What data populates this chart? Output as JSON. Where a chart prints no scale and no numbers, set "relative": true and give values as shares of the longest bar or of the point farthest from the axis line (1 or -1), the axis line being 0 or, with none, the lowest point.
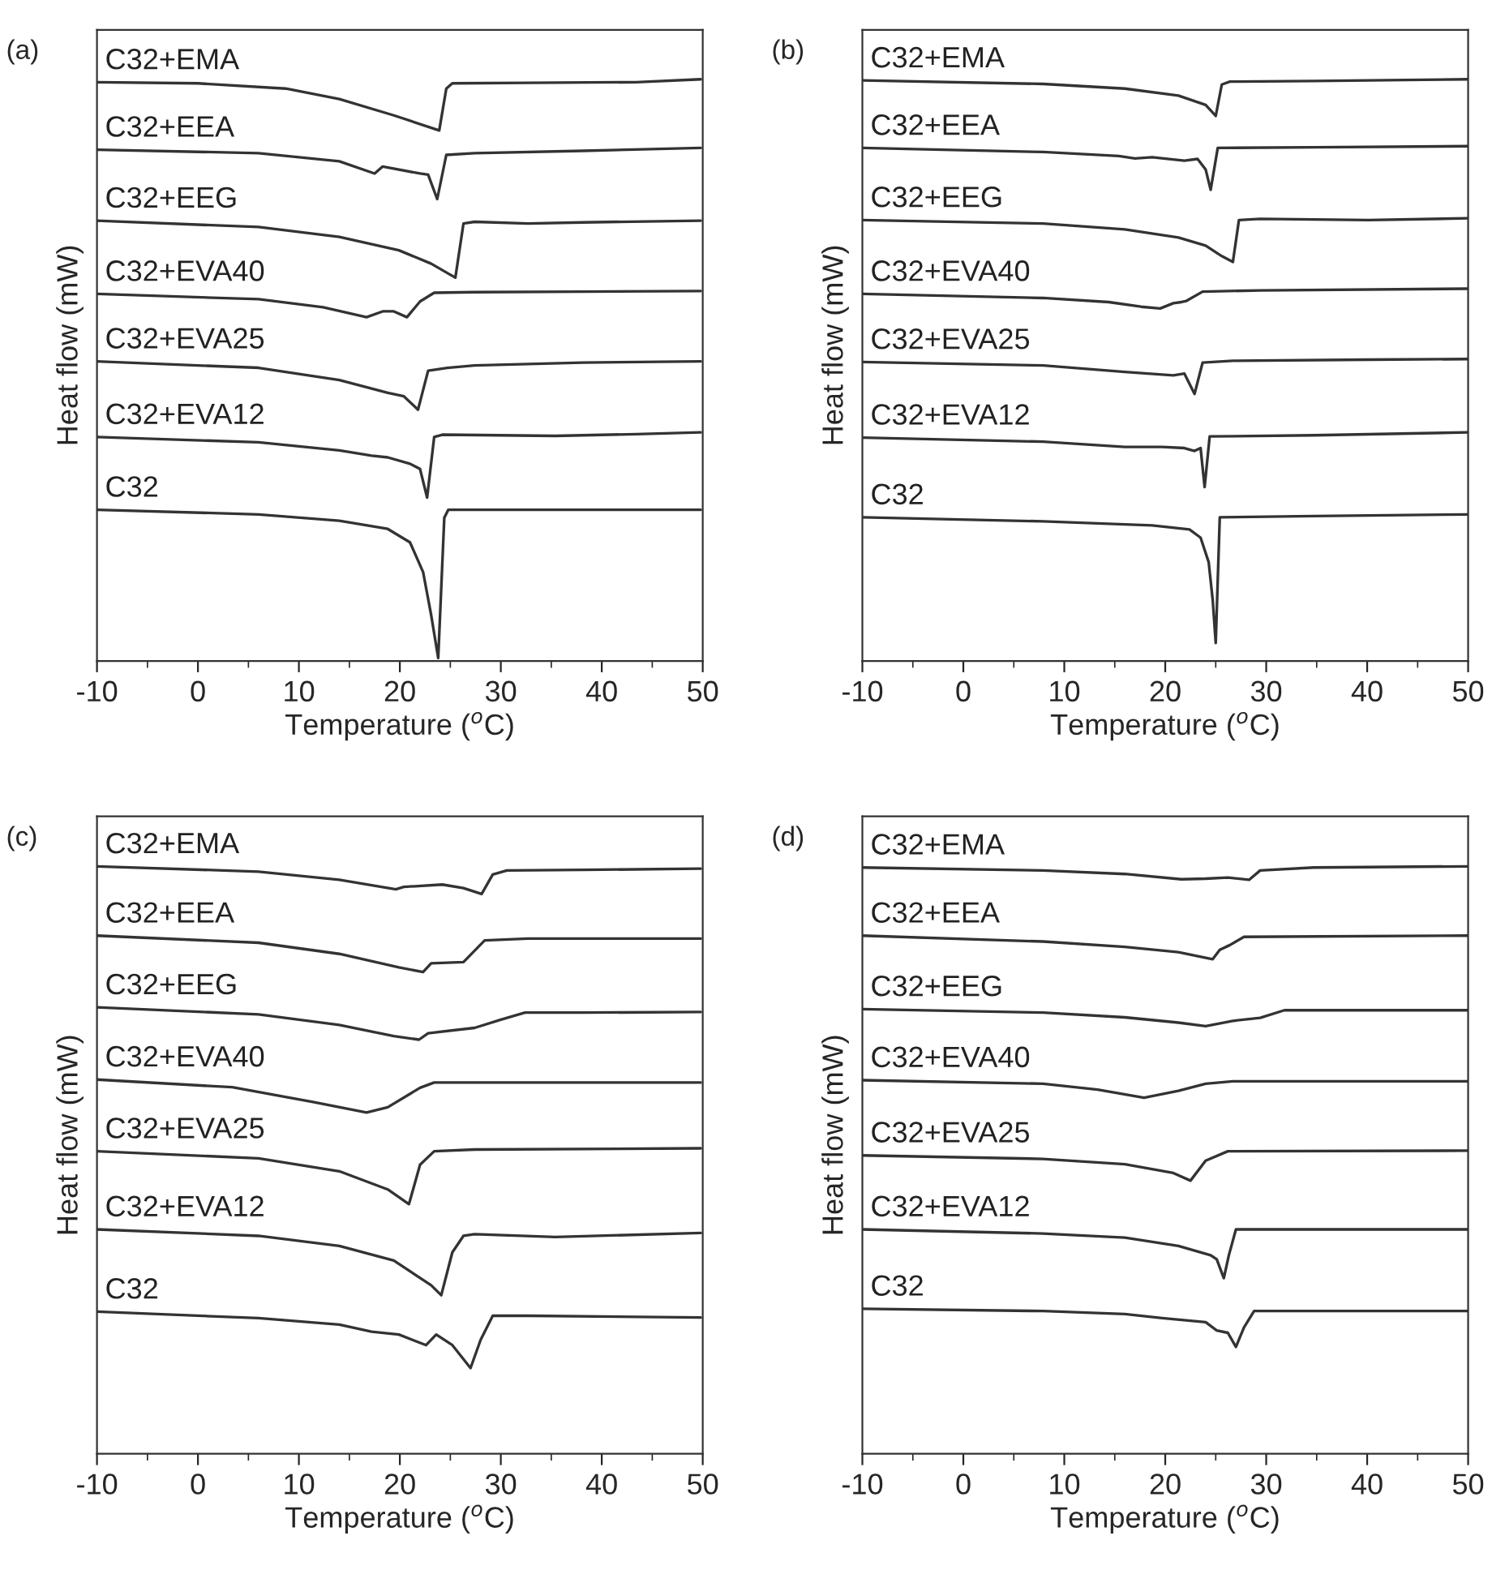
{
  "chart_data": [
    {
      "type": "line",
      "title": "(a)",
      "xlabel": "Temperature ($^{o}$C)",
      "ylabel": "Heat flow (mW)",
      "relative": true,
      "xlim": [
        -10,
        50
      ],
      "xticks": [
        -10,
        0,
        10,
        20,
        30,
        40,
        50
      ],
      "tick_labels": "x",
      "legend": false,
      "grid": false,
      "series": [
        {
          "name": "C32+EMA",
          "color": "#333333",
          "x": [
            -10,
            0,
            8.7,
            14,
            19.4,
            23.9,
            24.6,
            25.2,
            32.7,
            43.4,
            49.8
          ],
          "values": [
            0.995,
            0.993,
            0.984,
            0.966,
            0.938,
            0.912,
            0.984,
            0.993,
            0.994,
            0.995,
            1.0
          ]
        },
        {
          "name": "C32+EEA",
          "color": "#333333",
          "x": [
            -10,
            6.0,
            14.0,
            17.5,
            18.3,
            22.0,
            22.8,
            23.7,
            24.6,
            27.4,
            38.1,
            49.8
          ],
          "values": [
            0.879,
            0.873,
            0.859,
            0.838,
            0.85,
            0.838,
            0.836,
            0.794,
            0.87,
            0.873,
            0.877,
            0.882
          ]
        },
        {
          "name": "C32+EEG",
          "color": "#333333",
          "x": [
            -10,
            6.0,
            14.0,
            19.9,
            23.1,
            25.5,
            26.3,
            27.4,
            32.7,
            38.1,
            49.8
          ],
          "values": [
            0.757,
            0.746,
            0.729,
            0.706,
            0.683,
            0.659,
            0.752,
            0.755,
            0.752,
            0.754,
            0.757
          ]
        },
        {
          "name": "C32+EVA40",
          "color": "#333333",
          "x": [
            -10,
            6.0,
            12.4,
            16.7,
            18.3,
            19.4,
            20.7,
            22.0,
            23.4,
            27.4,
            38.1,
            49.8
          ],
          "values": [
            0.631,
            0.622,
            0.608,
            0.591,
            0.601,
            0.601,
            0.591,
            0.618,
            0.633,
            0.634,
            0.635,
            0.636
          ]
        },
        {
          "name": "C32+EVA25",
          "color": "#333333",
          "x": [
            -10,
            6.0,
            14.0,
            18.8,
            20.4,
            21.8,
            22.8,
            24.7,
            27.4,
            38.1,
            49.8
          ],
          "values": [
            0.515,
            0.504,
            0.483,
            0.461,
            0.455,
            0.432,
            0.499,
            0.504,
            0.508,
            0.513,
            0.515
          ]
        },
        {
          "name": "C32+EVA12",
          "color": "#333333",
          "x": [
            -10,
            6.0,
            14.0,
            17.2,
            18.8,
            21.0,
            22.0,
            22.7,
            23.4,
            24.2,
            35.4,
            43.4,
            49.8
          ],
          "values": [
            0.385,
            0.376,
            0.362,
            0.353,
            0.35,
            0.339,
            0.33,
            0.281,
            0.385,
            0.389,
            0.387,
            0.39,
            0.393
          ]
        },
        {
          "name": "C32",
          "color": "#333333",
          "x": [
            -10,
            6.0,
            14.0,
            18.8,
            21.0,
            22.3,
            23.1,
            23.8,
            24.4,
            24.8,
            32.7,
            49.8
          ],
          "values": [
            0.26,
            0.252,
            0.241,
            0.227,
            0.204,
            0.153,
            0.079,
            0.005,
            0.246,
            0.26,
            0.26,
            0.26
          ]
        }
      ]
    },
    {
      "type": "line",
      "title": "(b)",
      "xlabel": "Temperature ($^{o}$C)",
      "ylabel": "Heat flow (mW)",
      "relative": true,
      "xlim": [
        -10,
        50
      ],
      "xticks": [
        -10,
        0,
        10,
        20,
        30,
        40,
        50
      ],
      "tick_labels": "x",
      "legend": false,
      "grid": false,
      "series": [
        {
          "name": "C32+EMA",
          "color": "#333333",
          "x": [
            -10,
            7.9,
            16.0,
            21.3,
            24.0,
            25.0,
            25.6,
            26.4,
            34.7,
            50
          ],
          "values": [
            0.998,
            0.992,
            0.984,
            0.972,
            0.956,
            0.937,
            0.991,
            0.996,
            0.997,
            1.0
          ]
        },
        {
          "name": "C32+EEA",
          "color": "#333333",
          "x": [
            -10,
            7.9,
            15.4,
            17.0,
            18.7,
            21.9,
            23.2,
            24.0,
            24.5,
            25.2,
            34.7,
            50
          ],
          "values": [
            0.882,
            0.875,
            0.868,
            0.864,
            0.866,
            0.86,
            0.863,
            0.845,
            0.81,
            0.882,
            0.883,
            0.885
          ]
        },
        {
          "name": "C32+EEG",
          "color": "#333333",
          "x": [
            -10,
            7.9,
            16.0,
            21.3,
            24.0,
            25.6,
            26.7,
            27.3,
            29.4,
            40.1,
            50
          ],
          "values": [
            0.758,
            0.752,
            0.742,
            0.728,
            0.714,
            0.696,
            0.686,
            0.758,
            0.76,
            0.758,
            0.761
          ]
        },
        {
          "name": "C32+EVA40",
          "color": "#333333",
          "x": [
            -10,
            7.9,
            14.4,
            17.6,
            19.5,
            20.8,
            21.6,
            22.1,
            23.7,
            29.4,
            50
          ],
          "values": [
            0.631,
            0.624,
            0.617,
            0.609,
            0.606,
            0.615,
            0.617,
            0.619,
            0.635,
            0.637,
            0.64
          ]
        },
        {
          "name": "C32+EVA25",
          "color": "#333333",
          "x": [
            -10,
            7.9,
            16.0,
            20.8,
            21.9,
            22.9,
            23.7,
            26.7,
            40.1,
            50
          ],
          "values": [
            0.514,
            0.508,
            0.497,
            0.491,
            0.494,
            0.459,
            0.513,
            0.516,
            0.518,
            0.519
          ]
        },
        {
          "name": "C32+EVA12",
          "color": "#333333",
          "x": [
            -10,
            7.9,
            16.0,
            19.7,
            21.9,
            22.9,
            23.5,
            23.9,
            24.4,
            34.7,
            50
          ],
          "values": [
            0.384,
            0.377,
            0.368,
            0.368,
            0.366,
            0.361,
            0.366,
            0.299,
            0.386,
            0.388,
            0.393
          ]
        },
        {
          "name": "C32",
          "color": "#333333",
          "x": [
            -10,
            7.9,
            18.7,
            22.4,
            23.5,
            24.3,
            24.7,
            25.0,
            25.4,
            34.7,
            50
          ],
          "values": [
            0.247,
            0.24,
            0.233,
            0.226,
            0.212,
            0.17,
            0.105,
            0.031,
            0.247,
            0.249,
            0.252
          ]
        }
      ]
    },
    {
      "type": "line",
      "title": "(c)",
      "xlabel": "Temperature ($^{o}$C)",
      "ylabel": "Heat flow (mW)",
      "relative": true,
      "xlim": [
        -10,
        50
      ],
      "xticks": [
        -10,
        0,
        10,
        20,
        30,
        40,
        50
      ],
      "tick_labels": "x",
      "legend": false,
      "grid": false,
      "series": [
        {
          "name": "C32+EMA",
          "color": "#333333",
          "x": [
            -10,
            6.0,
            14.0,
            19.6,
            20.4,
            24.2,
            26.3,
            28.1,
            29.2,
            30.6,
            38.1,
            49.8
          ],
          "values": [
            1.0,
            0.991,
            0.977,
            0.961,
            0.965,
            0.969,
            0.963,
            0.953,
            0.986,
            0.993,
            0.994,
            0.996
          ]
        },
        {
          "name": "C32+EEA",
          "color": "#333333",
          "x": [
            -10,
            6.0,
            14.0,
            19.9,
            22.3,
            23.1,
            26.3,
            28.4,
            32.7,
            49.8
          ],
          "values": [
            0.882,
            0.87,
            0.851,
            0.828,
            0.82,
            0.835,
            0.837,
            0.874,
            0.877,
            0.877
          ]
        },
        {
          "name": "C32+EEG",
          "color": "#333333",
          "x": [
            -10,
            6.0,
            14.0,
            19.4,
            21.9,
            22.8,
            27.4,
            30.0,
            32.4,
            38.1,
            49.8
          ],
          "values": [
            0.76,
            0.748,
            0.73,
            0.711,
            0.705,
            0.716,
            0.725,
            0.739,
            0.751,
            0.751,
            0.752
          ]
        },
        {
          "name": "C32+EVA40",
          "color": "#333333",
          "x": [
            -10,
            3.4,
            11.4,
            16.7,
            18.8,
            22.0,
            23.4,
            32.7,
            49.8
          ],
          "values": [
            0.637,
            0.624,
            0.599,
            0.581,
            0.59,
            0.623,
            0.632,
            0.632,
            0.632
          ]
        },
        {
          "name": "C32+EVA25",
          "color": "#333333",
          "x": [
            -10,
            6.0,
            14.0,
            18.8,
            20.9,
            22.0,
            23.4,
            27.4,
            49.8
          ],
          "values": [
            0.515,
            0.503,
            0.481,
            0.45,
            0.425,
            0.492,
            0.515,
            0.518,
            0.52
          ]
        },
        {
          "name": "C32+EVA12",
          "color": "#333333",
          "x": [
            -10,
            6.0,
            14.0,
            19.4,
            23.1,
            24.1,
            25.2,
            26.3,
            27.4,
            35.4,
            49.8
          ],
          "values": [
            0.382,
            0.371,
            0.354,
            0.329,
            0.287,
            0.27,
            0.343,
            0.371,
            0.374,
            0.369,
            0.376
          ]
        },
        {
          "name": "C32",
          "color": "#333333",
          "x": [
            -10,
            6.0,
            14.0,
            17.2,
            19.9,
            22.6,
            23.6,
            25.2,
            27.0,
            28.0,
            29.2,
            32.7,
            49.8
          ],
          "values": [
            0.242,
            0.231,
            0.22,
            0.208,
            0.203,
            0.185,
            0.203,
            0.185,
            0.146,
            0.194,
            0.235,
            0.235,
            0.232
          ]
        }
      ]
    },
    {
      "type": "line",
      "title": "(d)",
      "xlabel": "Temperature ($^{o}$C)",
      "ylabel": "Heat flow (mW)",
      "relative": true,
      "xlim": [
        -10,
        50
      ],
      "xticks": [
        -10,
        0,
        10,
        20,
        30,
        40,
        50
      ],
      "tick_labels": "x",
      "legend": false,
      "grid": false,
      "series": [
        {
          "name": "C32+EMA",
          "color": "#333333",
          "x": [
            -10,
            7.9,
            16.0,
            21.6,
            24.0,
            26.2,
            28.3,
            29.4,
            34.7,
            50
          ],
          "values": [
            0.998,
            0.993,
            0.987,
            0.978,
            0.979,
            0.981,
            0.977,
            0.993,
            0.998,
            1.0
          ]
        },
        {
          "name": "C32+EEA",
          "color": "#333333",
          "x": [
            -10,
            7.9,
            16.0,
            21.3,
            24.7,
            25.4,
            26.4,
            27.8,
            50
          ],
          "values": [
            0.882,
            0.872,
            0.863,
            0.854,
            0.842,
            0.858,
            0.866,
            0.88,
            0.882
          ]
        },
        {
          "name": "C32+EEG",
          "color": "#333333",
          "x": [
            -10,
            7.9,
            16.0,
            21.3,
            24.0,
            26.7,
            29.4,
            31.8,
            50
          ],
          "values": [
            0.757,
            0.751,
            0.743,
            0.734,
            0.728,
            0.737,
            0.742,
            0.755,
            0.755
          ]
        },
        {
          "name": "C32+EVA40",
          "color": "#333333",
          "x": [
            -10,
            7.9,
            13.3,
            17.9,
            21.3,
            24.0,
            26.7,
            50
          ],
          "values": [
            0.636,
            0.63,
            0.62,
            0.606,
            0.618,
            0.63,
            0.634,
            0.634
          ]
        },
        {
          "name": "C32+EVA25",
          "color": "#333333",
          "x": [
            -10,
            7.9,
            16.0,
            20.8,
            22.5,
            24.0,
            26.2,
            50
          ],
          "values": [
            0.508,
            0.502,
            0.493,
            0.478,
            0.465,
            0.499,
            0.515,
            0.516
          ]
        },
        {
          "name": "C32+EVA12",
          "color": "#333333",
          "x": [
            -10,
            7.9,
            16.0,
            21.3,
            24.5,
            25.1,
            25.8,
            26.3,
            27.0,
            50
          ],
          "values": [
            0.382,
            0.375,
            0.368,
            0.354,
            0.338,
            0.331,
            0.299,
            0.338,
            0.382,
            0.382
          ]
        },
        {
          "name": "C32",
          "color": "#333333",
          "x": [
            -10,
            7.9,
            16.0,
            19.7,
            24.0,
            25.1,
            26.2,
            27.0,
            27.8,
            28.8,
            50
          ],
          "values": [
            0.247,
            0.243,
            0.238,
            0.231,
            0.224,
            0.21,
            0.206,
            0.182,
            0.215,
            0.243,
            0.243
          ]
        }
      ]
    }
  ]
}
